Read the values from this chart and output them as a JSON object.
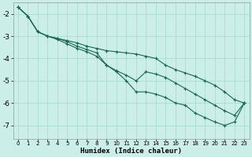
{
  "xlabel": "Humidex (Indice chaleur)",
  "bg_color": "#cceee8",
  "grid_color": "#aaddcc",
  "line_color": "#1a6655",
  "xlim": [
    -0.5,
    23.5
  ],
  "ylim": [
    -7.6,
    -1.5
  ],
  "xticks": [
    0,
    1,
    2,
    3,
    4,
    5,
    6,
    7,
    8,
    9,
    10,
    11,
    12,
    13,
    14,
    15,
    16,
    17,
    18,
    19,
    20,
    21,
    22,
    23
  ],
  "yticks": [
    -7,
    -6,
    -5,
    -4,
    -3,
    -2
  ],
  "line1_x": [
    0,
    1,
    2,
    3,
    4,
    5,
    6,
    7,
    8,
    9,
    10,
    11,
    12,
    13,
    14,
    15,
    16,
    17,
    18,
    19,
    20,
    21,
    22,
    23
  ],
  "line1_y": [
    -1.7,
    -2.1,
    -2.8,
    -3.0,
    -3.1,
    -3.2,
    -3.3,
    -3.45,
    -3.55,
    -3.65,
    -3.7,
    -3.75,
    -3.8,
    -3.9,
    -4.0,
    -4.3,
    -4.5,
    -4.65,
    -4.8,
    -5.0,
    -5.2,
    -5.5,
    -5.85,
    -6.0
  ],
  "line2_x": [
    0,
    1,
    2,
    3,
    4,
    5,
    6,
    7,
    8,
    9,
    10,
    11,
    12,
    13,
    14,
    15,
    16,
    17,
    18,
    19,
    20,
    21,
    22,
    23
  ],
  "line2_y": [
    -1.7,
    -2.1,
    -2.8,
    -3.0,
    -3.1,
    -3.25,
    -3.45,
    -3.6,
    -3.75,
    -4.3,
    -4.55,
    -4.75,
    -5.0,
    -4.6,
    -4.7,
    -4.85,
    -5.1,
    -5.35,
    -5.6,
    -5.85,
    -6.1,
    -6.35,
    -6.55,
    -6.0
  ],
  "line3_x": [
    0,
    1,
    2,
    3,
    4,
    5,
    6,
    7,
    8,
    9,
    10,
    11,
    12,
    13,
    14,
    15,
    16,
    17,
    18,
    19,
    20,
    21,
    22,
    23
  ],
  "line3_y": [
    -1.7,
    -2.1,
    -2.8,
    -3.0,
    -3.15,
    -3.35,
    -3.55,
    -3.7,
    -3.9,
    -4.3,
    -4.6,
    -5.0,
    -5.5,
    -5.5,
    -5.6,
    -5.75,
    -6.0,
    -6.1,
    -6.45,
    -6.65,
    -6.85,
    -7.0,
    -6.85,
    -6.0
  ]
}
